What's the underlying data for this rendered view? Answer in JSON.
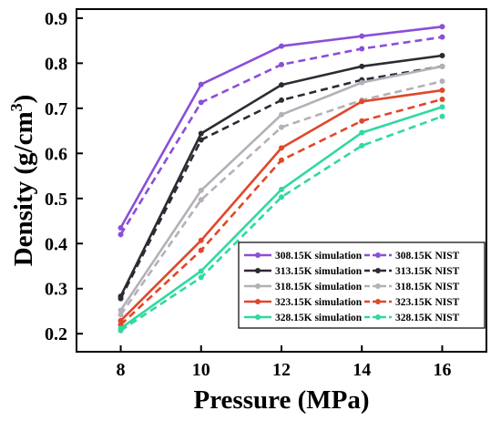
{
  "chart_data": {
    "type": "line",
    "xlabel": "Pressure (MPa)",
    "ylabel_main": "Density (g/cm",
    "ylabel_sup": "3",
    "ylabel_close": ")",
    "xlim": [
      6.9,
      17.1
    ],
    "ylim": [
      0.16,
      0.92
    ],
    "x_ticks": [
      8,
      10,
      12,
      14,
      16
    ],
    "y_ticks": [
      0.2,
      0.3,
      0.4,
      0.5,
      0.6,
      0.7,
      0.8,
      0.9
    ],
    "x_tick_labels": [
      "8",
      "10",
      "12",
      "14",
      "16"
    ],
    "y_tick_labels": [
      "0.2",
      "0.3",
      "0.4",
      "0.5",
      "0.6",
      "0.7",
      "0.8",
      "0.9"
    ],
    "legend_position": "bottom-right",
    "x": [
      8,
      10,
      12,
      14,
      16
    ],
    "series": [
      {
        "name": "308.15K simulation",
        "color": "#8a4fd8",
        "dash": false,
        "values": [
          0.435,
          0.753,
          0.838,
          0.86,
          0.881
        ]
      },
      {
        "name": "308.15K NIST",
        "color": "#8a4fd8",
        "dash": true,
        "values": [
          0.42,
          0.713,
          0.797,
          0.832,
          0.858
        ]
      },
      {
        "name": "313.15K simulation",
        "color": "#2e2a33",
        "dash": false,
        "values": [
          0.283,
          0.644,
          0.752,
          0.793,
          0.817
        ]
      },
      {
        "name": "313.15K NIST",
        "color": "#2e2a33",
        "dash": true,
        "values": [
          0.278,
          0.63,
          0.718,
          0.763,
          0.793
        ]
      },
      {
        "name": "318.15K simulation",
        "color": "#b5b0b8",
        "dash": false,
        "values": [
          0.252,
          0.518,
          0.686,
          0.757,
          0.793
        ]
      },
      {
        "name": "318.15K NIST",
        "color": "#b5b0b8",
        "dash": true,
        "values": [
          0.242,
          0.497,
          0.658,
          0.718,
          0.76
        ]
      },
      {
        "name": "323.15K simulation",
        "color": "#e0472b",
        "dash": false,
        "values": [
          0.229,
          0.407,
          0.612,
          0.715,
          0.74
        ]
      },
      {
        "name": "323.15K NIST",
        "color": "#e0472b",
        "dash": true,
        "values": [
          0.22,
          0.385,
          0.585,
          0.672,
          0.72
        ]
      },
      {
        "name": "328.15K simulation",
        "color": "#2fd9a0",
        "dash": false,
        "values": [
          0.212,
          0.339,
          0.52,
          0.646,
          0.703
        ]
      },
      {
        "name": "328.15K NIST",
        "color": "#2fd9a0",
        "dash": true,
        "values": [
          0.207,
          0.325,
          0.503,
          0.617,
          0.682
        ]
      }
    ]
  }
}
